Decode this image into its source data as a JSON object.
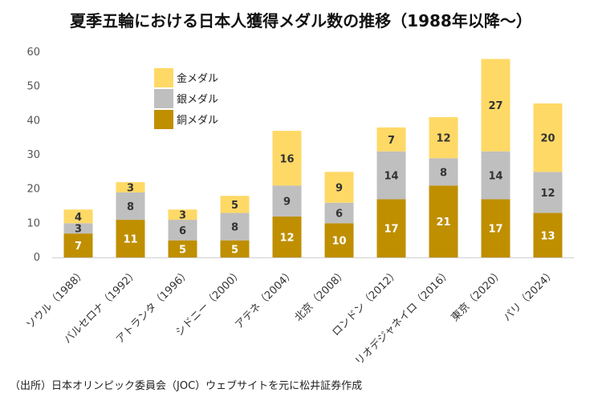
{
  "title": "夏季五輪における日本人獲得メダル数の推移（1988年以降～）",
  "source": "（出所）日本オリンピック委員会（JOC）ウェブサイトを元に松井証券作成",
  "chart_data": {
    "type": "bar",
    "stacked": true,
    "categories": [
      "ソウル（1988）",
      "バルセロナ（1992）",
      "アトランタ（1996）",
      "シドニー（2000）",
      "アテネ（2004）",
      "北京（2008）",
      "ロンドン（2012）",
      "リオデジャネイロ（2016）",
      "東京（2020）",
      "パリ（2024）"
    ],
    "series": [
      {
        "name": "銅メダル",
        "color": "#bf8f00",
        "label_color": "#ffffff",
        "values": [
          7,
          11,
          5,
          5,
          12,
          10,
          17,
          21,
          17,
          13
        ]
      },
      {
        "name": "銀メダル",
        "color": "#bfbfbf",
        "label_color": "#333333",
        "values": [
          3,
          8,
          6,
          8,
          9,
          6,
          14,
          8,
          14,
          12
        ]
      },
      {
        "name": "金メダル",
        "color": "#ffd966",
        "label_color": "#333333",
        "values": [
          4,
          3,
          3,
          5,
          16,
          9,
          7,
          12,
          27,
          20
        ]
      }
    ],
    "legend_order": [
      "金メダル",
      "銀メダル",
      "銅メダル"
    ],
    "legend_position": "top-left",
    "ylim": [
      0,
      60
    ],
    "yticks": [
      0,
      10,
      20,
      30,
      40,
      50,
      60
    ],
    "grid": false
  }
}
